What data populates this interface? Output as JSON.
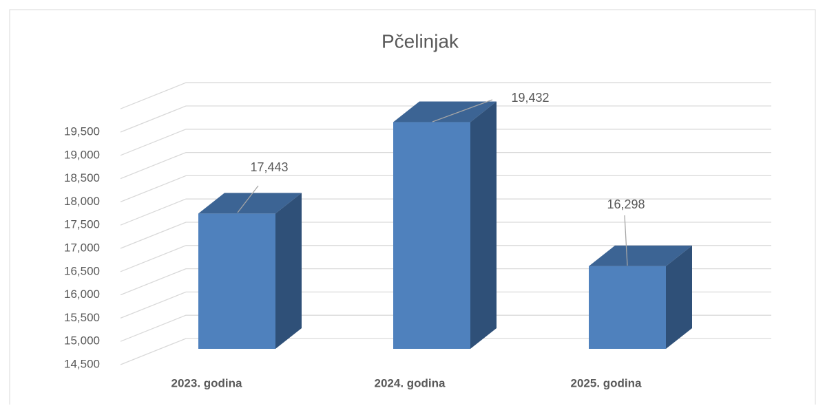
{
  "chart_data": {
    "type": "bar3d",
    "title": "Pčelinjak",
    "categories": [
      "2023. godina",
      "2024. godina",
      "2025. godina"
    ],
    "values": [
      17443,
      19432,
      16298
    ],
    "value_labels": [
      "17,443",
      "19,432",
      "16,298"
    ],
    "color": "#4f81bd",
    "ylim": [
      14500,
      20000
    ],
    "yticks": [
      {
        "value": 14500,
        "label": "14,500"
      },
      {
        "value": 15000,
        "label": "15,000"
      },
      {
        "value": 15500,
        "label": "15,500"
      },
      {
        "value": 16000,
        "label": "16,000"
      },
      {
        "value": 16500,
        "label": "16,500"
      },
      {
        "value": 17000,
        "label": "17,000"
      },
      {
        "value": 17500,
        "label": "17,500"
      },
      {
        "value": 18000,
        "label": "18,000"
      },
      {
        "value": 18500,
        "label": "18,500"
      },
      {
        "value": 19000,
        "label": "19,000"
      },
      {
        "value": 19500,
        "label": "19,500"
      }
    ],
    "grid": true
  }
}
